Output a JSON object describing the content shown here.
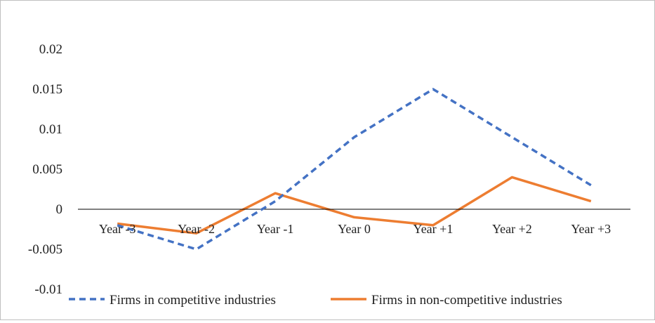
{
  "chart_data": {
    "type": "line",
    "categories": [
      "Year -3",
      "Year -2",
      "Year -1",
      "Year 0",
      "Year +1",
      "Year +2",
      "Year +3"
    ],
    "series": [
      {
        "name": "Firms in competitive industries",
        "values": [
          -0.002,
          -0.005,
          0.001,
          0.009,
          0.015,
          0.009,
          0.003
        ],
        "color": "#4472C4",
        "style": "dashed"
      },
      {
        "name": "Firms in non-competitive industries",
        "values": [
          -0.0018,
          -0.003,
          0.002,
          -0.001,
          -0.002,
          0.004,
          0.001
        ],
        "color": "#ED7D31",
        "style": "solid"
      }
    ],
    "yticks": [
      "0.02",
      "0.015",
      "0.01",
      "0.005",
      "0",
      "-0.005",
      "-0.01"
    ],
    "ytick_values": [
      0.02,
      0.015,
      0.01,
      0.005,
      0,
      -0.005,
      -0.01
    ],
    "ylim": [
      -0.01,
      0.02
    ],
    "xlabel": "",
    "ylabel": "",
    "title": "",
    "grid": false,
    "legend": "bottom"
  }
}
